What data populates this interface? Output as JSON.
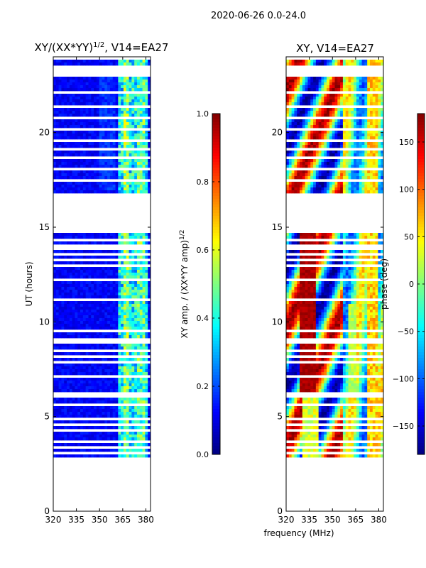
{
  "figure_title": "2020-06-26 0.0-24.0",
  "shared_xlabel": "frequency (MHz)",
  "colors": {
    "masked_white": "#ffffff",
    "frame": "#000000"
  },
  "chart_data": [
    {
      "type": "heatmap",
      "title_prefix": "XY/(XX*YY)",
      "title_sup": "1/2",
      "title_suffix": ", V14=EA27",
      "xlabel": "",
      "ylabel": "UT (hours)",
      "xlim": [
        320,
        383
      ],
      "ylim": [
        0,
        24
      ],
      "xticks": [
        "320",
        "335",
        "350",
        "365",
        "380"
      ],
      "xtick_values": [
        320,
        335,
        350,
        365,
        380
      ],
      "yticks": [
        "0",
        "5",
        "10",
        "15",
        "20"
      ],
      "ytick_values": [
        0,
        5,
        10,
        15,
        20
      ],
      "data_time_ranges": [
        [
          2.9,
          5.7
        ],
        [
          5.75,
          14.75
        ],
        [
          16.85,
          24.0
        ]
      ],
      "flagged_gap": [
        14.75,
        16.85
      ],
      "masked_rows_hours": [
        3.1,
        3.5,
        3.7,
        4.4,
        5.0,
        6.1,
        6.3,
        7.2,
        8.6,
        9.6,
        11.2,
        12.3,
        13.3,
        13.7,
        14.1,
        17.5,
        18.2,
        19.2,
        19.6,
        20.3,
        20.9,
        21.4,
        22.2,
        23.1,
        23.6
      ],
      "colorbar": {
        "label_prefix": "XY amp. / (XX*YY amp)",
        "label_sup": "1/2",
        "range": [
          0.0,
          1.0
        ],
        "ticks": [
          "0.0",
          "0.2",
          "0.4",
          "0.6",
          "0.8",
          "1.0"
        ],
        "tick_values": [
          0.0,
          0.2,
          0.4,
          0.6,
          0.8,
          1.0
        ],
        "colormap": "jet"
      }
    },
    {
      "type": "heatmap",
      "title": "XY, V14=EA27",
      "xlabel": "frequency (MHz)",
      "ylabel": "",
      "xlim": [
        320,
        383
      ],
      "ylim": [
        0,
        24
      ],
      "xticks": [
        "320",
        "335",
        "350",
        "365",
        "380"
      ],
      "xtick_values": [
        320,
        335,
        350,
        365,
        380
      ],
      "yticks": [
        "0",
        "5",
        "10",
        "15",
        "20"
      ],
      "ytick_values": [
        0,
        5,
        10,
        15,
        20
      ],
      "data_time_ranges": [
        [
          2.9,
          5.7
        ],
        [
          5.75,
          14.75
        ],
        [
          16.85,
          24.0
        ]
      ],
      "flagged_gap": [
        14.75,
        16.85
      ],
      "colorbar": {
        "label": "phase (deg)",
        "range": [
          -180,
          180
        ],
        "ticks": [
          "150",
          "100",
          "50",
          "0",
          "−50",
          "−100",
          "−150"
        ],
        "tick_values": [
          150,
          100,
          50,
          0,
          -50,
          -100,
          -150
        ],
        "colormap": "jet"
      }
    }
  ]
}
